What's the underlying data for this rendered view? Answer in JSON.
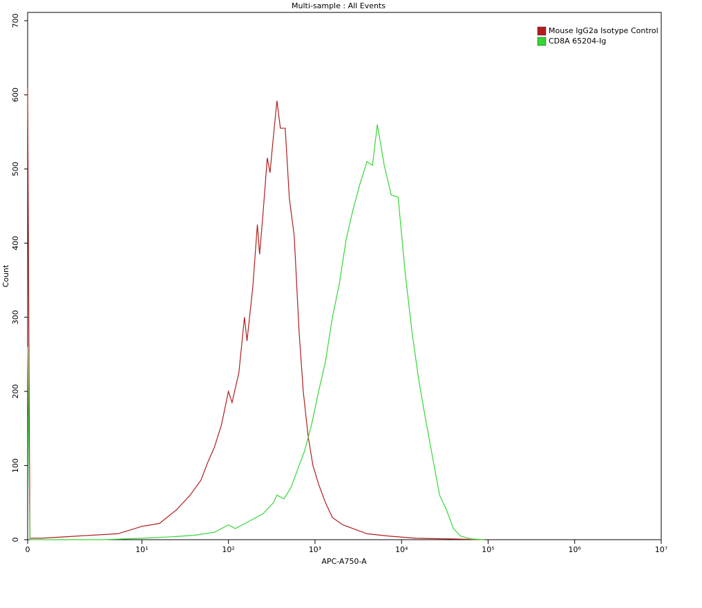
{
  "chart_data": {
    "type": "line",
    "title": "Multi-sample : All Events",
    "xlabel": "APC-A750-A",
    "ylabel": "Count",
    "xscale": "symlog",
    "xlim": [
      0,
      10000000
    ],
    "xticks": [
      0,
      {
        "value": 10,
        "label": "10¹"
      },
      {
        "value": 100,
        "label": "10²"
      },
      {
        "value": 1000,
        "label": "10³"
      },
      {
        "value": 10000,
        "label": "10⁴"
      },
      {
        "value": 100000,
        "label": "10⁵"
      },
      {
        "value": 1000000,
        "label": "10⁶"
      },
      {
        "value": 10000000,
        "label": "10⁷"
      }
    ],
    "ylim": [
      0,
      700
    ],
    "yticks": [
      0,
      100,
      200,
      300,
      400,
      500,
      600,
      700
    ],
    "legend": "top-right",
    "series": [
      {
        "name": "Mouse IgG2a Isotype Control",
        "color": "#b01c1c",
        "x": [
          0,
          0.2,
          1.2,
          4.5,
          7.9,
          10,
          16,
          25,
          36,
          48,
          58,
          69,
          83,
          100,
          110,
          132,
          153,
          164,
          191,
          216,
          229,
          251,
          281,
          302,
          331,
          363,
          398,
          453,
          506,
          575,
          655,
          731,
          832,
          947,
          1100,
          1320,
          1590,
          2090,
          2750,
          3980,
          6920,
          14500,
          36300,
          91200
        ],
        "values": [
          610,
          2,
          2,
          5,
          8,
          18,
          22,
          40,
          60,
          80,
          105,
          125,
          155,
          200,
          185,
          225,
          300,
          268,
          340,
          425,
          385,
          440,
          515,
          495,
          545,
          592,
          555,
          555,
          460,
          410,
          280,
          200,
          140,
          100,
          75,
          50,
          30,
          20,
          15,
          8,
          5,
          2,
          1,
          0
        ]
      },
      {
        "name": "CD8A 65204-Ig",
        "color": "#33d633",
        "x": [
          0,
          0.2,
          6.7,
          10,
          23,
          40,
          69,
          100,
          120,
          174,
          251,
          331,
          363,
          437,
          525,
          631,
          759,
          912,
          1100,
          1320,
          1590,
          1910,
          2290,
          2750,
          3310,
          3980,
          4610,
          5250,
          6310,
          7590,
          9120,
          11000,
          13200,
          15800,
          19100,
          22900,
          27500,
          33100,
          39800,
          47900,
          63100,
          91200
        ],
        "values": [
          260,
          0,
          0,
          2,
          4,
          6,
          10,
          20,
          15,
          25,
          35,
          50,
          60,
          55,
          70,
          95,
          120,
          155,
          200,
          240,
          300,
          345,
          405,
          445,
          480,
          510,
          505,
          560,
          505,
          465,
          462,
          360,
          280,
          215,
          160,
          110,
          60,
          40,
          15,
          5,
          1,
          0
        ]
      }
    ]
  }
}
